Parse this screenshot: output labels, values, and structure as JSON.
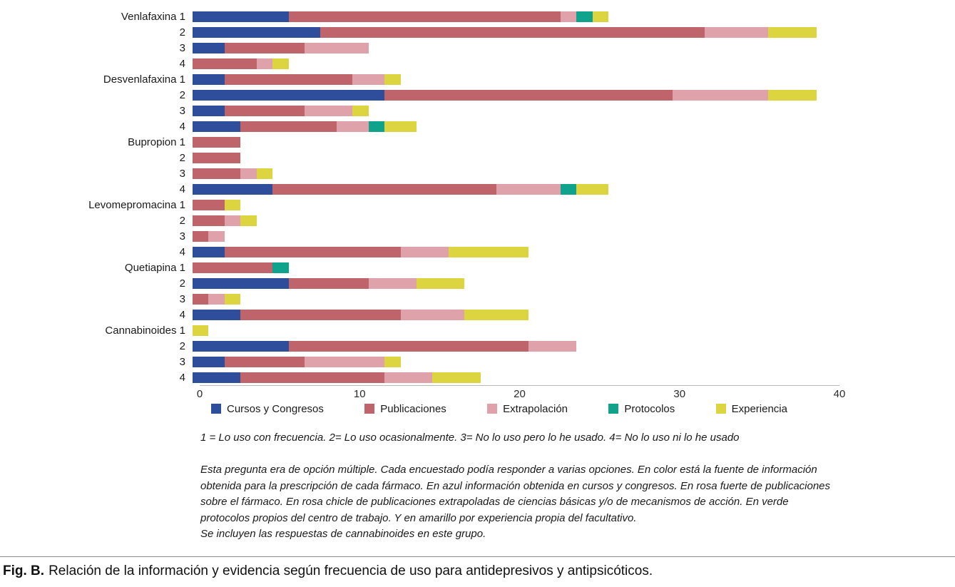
{
  "chart_data": {
    "type": "bar",
    "orientation": "horizontal",
    "stacked": true,
    "title": "",
    "xlabel": "",
    "ylabel": "",
    "xlim": [
      0,
      40
    ],
    "xticks": [
      "0",
      "10",
      "20",
      "30",
      "40"
    ],
    "grid": false,
    "legend_position": "bottom",
    "row_labels": [
      "Venlafaxina 1",
      "2",
      "3",
      "4",
      "Desvenlafaxina 1",
      "2",
      "3",
      "4",
      "Bupropion 1",
      "2",
      "3",
      "4",
      "Levomepromacina 1",
      "2",
      "3",
      "4",
      "Quetiapina 1",
      "2",
      "3",
      "4",
      "Cannabinoides 1",
      "2",
      "3",
      "4"
    ],
    "series": [
      {
        "name": "Cursos y Congresos",
        "color": "#2e4d9b",
        "values": [
          6,
          8,
          2,
          0,
          2,
          12,
          2,
          3,
          0,
          0,
          0,
          5,
          0,
          0,
          0,
          2,
          0,
          6,
          0,
          3,
          0,
          6,
          2,
          3
        ]
      },
      {
        "name": "Publicaciones",
        "color": "#c0646b",
        "values": [
          17,
          24,
          5,
          4,
          8,
          18,
          5,
          6,
          3,
          3,
          3,
          14,
          2,
          2,
          1,
          11,
          5,
          5,
          1,
          10,
          0,
          15,
          5,
          9
        ]
      },
      {
        "name": "Extrapolación",
        "color": "#dfa2aa",
        "values": [
          1,
          4,
          4,
          1,
          2,
          6,
          3,
          2,
          0,
          0,
          1,
          4,
          0,
          1,
          1,
          3,
          0,
          3,
          1,
          4,
          0,
          3,
          5,
          3
        ]
      },
      {
        "name": "Protocolos",
        "color": "#10a38c",
        "values": [
          1,
          0,
          0,
          0,
          0,
          0,
          0,
          1,
          0,
          0,
          0,
          1,
          0,
          0,
          0,
          0,
          1,
          0,
          0,
          0,
          0,
          0,
          0,
          0
        ]
      },
      {
        "name": "Experiencia",
        "color": "#dcd53f",
        "values": [
          1,
          3,
          0,
          1,
          1,
          3,
          1,
          2,
          0,
          0,
          1,
          2,
          1,
          1,
          0,
          5,
          0,
          3,
          1,
          4,
          1,
          0,
          1,
          3
        ]
      }
    ]
  },
  "notes": {
    "frequency_key": "1 = Lo uso con frecuencia. 2= Lo uso ocasionalmente. 3= No lo uso pero lo he usado. 4= No lo uso ni lo he usado",
    "description": "Esta pregunta era de opción múltiple. Cada encuestado podía responder a varias opciones. En color está la fuente de información obtenida para la prescripción de cada fármaco. En azul información obtenida en cursos y congresos. En rosa fuerte de publicaciones sobre el fármaco. En rosa chicle de publicaciones extrapoladas de ciencias básicas y/o de mecanismos de acción. En verde protocolos propios del centro de trabajo. Y en amarillo por experiencia propia del facultativo.",
    "extra_line": "Se incluyen las respuestas de cannabinoides en este grupo."
  },
  "caption": {
    "label": "Fig. B.",
    "text": "Relación de la información y evidencia según frecuencia de uso para antidepresivos y antipsicóticos."
  }
}
